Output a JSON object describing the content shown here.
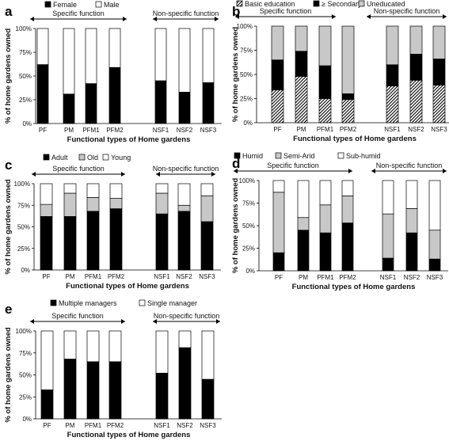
{
  "figure": {
    "colors": {
      "black": "#000000",
      "white": "#ffffff",
      "gray": "#c8c8c8"
    }
  },
  "chart_data": [
    {
      "panel": "a",
      "type": "bar",
      "stacked": true,
      "categories": [
        "PF",
        "PM",
        "PFM1",
        "PFM2",
        "NSF1",
        "NSF2",
        "NSF3"
      ],
      "series": [
        {
          "name": "Female",
          "values": [
            62,
            31,
            42,
            59,
            45,
            33,
            43
          ],
          "fill": "black"
        },
        {
          "name": "Male",
          "values": [
            38,
            69,
            58,
            41,
            55,
            67,
            57
          ],
          "fill": "white"
        }
      ],
      "xlabel": "Functional types of Home gardens",
      "ylabel": "% of home gardens owned",
      "ylim": [
        0,
        100
      ],
      "yticks": [
        "0%",
        "25%",
        "50%",
        "75%",
        "100%"
      ],
      "group_labels": [
        "Specific function",
        "Non-specific function"
      ],
      "legend_position": "top"
    },
    {
      "panel": "b",
      "type": "bar",
      "stacked": true,
      "categories": [
        "PF",
        "PM",
        "PFM1",
        "PFM2",
        "NSF1",
        "NSF2",
        "NSF3"
      ],
      "series": [
        {
          "name": "Basic education",
          "values": [
            34,
            48,
            25,
            24,
            38,
            44,
            39
          ],
          "fill": "hatch"
        },
        {
          "name": "≥ Secondary",
          "values": [
            31,
            26,
            34,
            6,
            22,
            27,
            27
          ],
          "fill": "black"
        },
        {
          "name": "Uneducated",
          "values": [
            35,
            26,
            41,
            70,
            40,
            29,
            34
          ],
          "fill": "gray"
        }
      ],
      "xlabel": "Functional types of Home gardens",
      "ylabel": "% of home gardens owned",
      "ylim": [
        0,
        100
      ],
      "yticks": [
        "0%",
        "25%",
        "50%",
        "75%",
        "100%"
      ],
      "group_labels": [
        "Specific function",
        "Non-specific function"
      ],
      "legend_position": "top"
    },
    {
      "panel": "c",
      "type": "bar",
      "stacked": true,
      "categories": [
        "PF",
        "PM",
        "PFM1",
        "PFM2",
        "NSF1",
        "NSF2",
        "NSF3"
      ],
      "series": [
        {
          "name": "Adult",
          "values": [
            62,
            62,
            68,
            71,
            65,
            68,
            56
          ],
          "fill": "black"
        },
        {
          "name": "Old",
          "values": [
            14,
            27,
            16,
            12,
            24,
            7,
            30
          ],
          "fill": "gray"
        },
        {
          "name": "Young",
          "values": [
            24,
            11,
            16,
            17,
            11,
            25,
            14
          ],
          "fill": "white"
        }
      ],
      "xlabel": "Functional types of Home gardens",
      "ylabel": "% of home gardens owned",
      "ylim": [
        0,
        100
      ],
      "yticks": [
        "0%",
        "25%",
        "50%",
        "75%",
        "100%"
      ],
      "group_labels": [
        "Specific function",
        "Non-specific function"
      ],
      "legend_position": "top"
    },
    {
      "panel": "d",
      "type": "bar",
      "stacked": true,
      "categories": [
        "PF",
        "PM",
        "PFM1",
        "PFM2",
        "NSF1",
        "NSF2",
        "NSF3"
      ],
      "series": [
        {
          "name": "Humid",
          "values": [
            20,
            45,
            42,
            53,
            14,
            42,
            13
          ],
          "fill": "black"
        },
        {
          "name": "Semi-Arid",
          "values": [
            67,
            14,
            31,
            30,
            49,
            27,
            32
          ],
          "fill": "gray"
        },
        {
          "name": "Sub-humid",
          "values": [
            13,
            41,
            27,
            17,
            37,
            31,
            55
          ],
          "fill": "white"
        }
      ],
      "xlabel": "Functional types of Home gardens",
      "ylabel": "% of home gardens owned",
      "ylim": [
        0,
        100
      ],
      "yticks": [
        "0%",
        "25%",
        "50%",
        "75%",
        "100%"
      ],
      "group_labels": [
        "Specific function",
        "Non-specific function"
      ],
      "legend_position": "top"
    },
    {
      "panel": "e",
      "type": "bar",
      "stacked": true,
      "categories": [
        "PF",
        "PM",
        "PFM1",
        "PFM2",
        "NSF1",
        "NSF2",
        "NSF3"
      ],
      "series": [
        {
          "name": "Multiple managers",
          "values": [
            33,
            68,
            65,
            65,
            52,
            81,
            45
          ],
          "fill": "black"
        },
        {
          "name": "Single manager",
          "values": [
            67,
            32,
            35,
            35,
            48,
            19,
            55
          ],
          "fill": "white"
        }
      ],
      "xlabel": "Functional types of Home gardens",
      "ylabel": "% of home gardens owned",
      "ylim": [
        0,
        100
      ],
      "yticks": [
        "0%",
        "25%",
        "50%",
        "75%",
        "100%"
      ],
      "group_labels": [
        "Specific function",
        "Non-specific function"
      ],
      "legend_position": "top"
    }
  ]
}
